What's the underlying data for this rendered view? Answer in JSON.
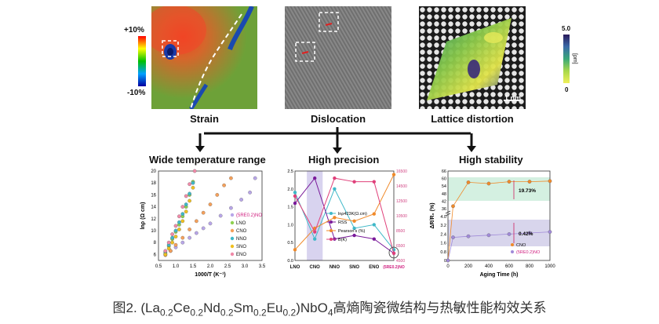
{
  "top": {
    "strain": {
      "label": "Strain",
      "scale_top": "+10%",
      "scale_bottom": "-10%"
    },
    "dislocation": {
      "label": "Dislocation"
    },
    "lattice": {
      "label": "Lattice distortion",
      "scale_top": "5.0",
      "scale_bottom": "0",
      "scale_unit": "[pm]",
      "scalebar": "1 nm"
    }
  },
  "sections": {
    "wide": "Wide temperature range",
    "precision": "High precision",
    "stability": "High stability"
  },
  "chart_data": [
    {
      "type": "scatter",
      "xlabel": "1000/T (K⁻¹)",
      "ylabel": "lnρ (Ω cm)",
      "xlim": [
        0.5,
        3.5
      ],
      "ylim": [
        5,
        20
      ],
      "xticks": [
        "0.5",
        "1.0",
        "1.5",
        "2.0",
        "2.5",
        "3.0",
        "3.5"
      ],
      "yticks": [
        "6",
        "8",
        "10",
        "12",
        "14",
        "16",
        "18",
        "20"
      ],
      "series": [
        {
          "name": "(5RE0.2)NO",
          "color": "#b8a6e8",
          "points": [
            [
              0.7,
              6.0
            ],
            [
              0.85,
              6.6
            ],
            [
              1.0,
              7.2
            ],
            [
              1.2,
              8.0
            ],
            [
              1.4,
              8.8
            ],
            [
              1.6,
              9.6
            ],
            [
              1.8,
              10.4
            ],
            [
              2.0,
              11.2
            ],
            [
              2.3,
              12.5
            ],
            [
              2.6,
              13.8
            ],
            [
              2.9,
              15.2
            ],
            [
              3.15,
              16.4
            ],
            [
              3.3,
              18.8
            ]
          ]
        },
        {
          "name": "LNO",
          "color": "#8fd14f",
          "points": [
            [
              0.7,
              6.2
            ],
            [
              0.8,
              7.4
            ],
            [
              0.9,
              8.6
            ],
            [
              1.0,
              9.8
            ],
            [
              1.1,
              11.0
            ],
            [
              1.2,
              12.4
            ],
            [
              1.3,
              14.0
            ],
            [
              1.4,
              16.0
            ],
            [
              1.5,
              18.2
            ]
          ]
        },
        {
          "name": "CNO",
          "color": "#f5a05a",
          "points": [
            [
              0.7,
              5.9
            ],
            [
              0.85,
              6.6
            ],
            [
              1.0,
              7.6
            ],
            [
              1.2,
              8.8
            ],
            [
              1.4,
              10.2
            ],
            [
              1.6,
              11.6
            ],
            [
              1.8,
              13.0
            ],
            [
              2.0,
              14.4
            ],
            [
              2.2,
              16.0
            ],
            [
              2.4,
              17.6
            ],
            [
              2.6,
              18.8
            ]
          ]
        },
        {
          "name": "NNO",
          "color": "#3fb8c8",
          "points": [
            [
              0.7,
              6.4
            ],
            [
              0.8,
              7.6
            ],
            [
              0.9,
              8.8
            ],
            [
              1.0,
              10.0
            ],
            [
              1.1,
              11.4
            ],
            [
              1.2,
              12.8
            ],
            [
              1.3,
              14.4
            ],
            [
              1.4,
              16.2
            ],
            [
              1.5,
              18.0
            ]
          ]
        },
        {
          "name": "SNO",
          "color": "#f0c020",
          "points": [
            [
              0.7,
              6.0
            ],
            [
              0.8,
              7.0
            ],
            [
              0.9,
              8.0
            ],
            [
              1.0,
              9.0
            ],
            [
              1.1,
              10.2
            ],
            [
              1.2,
              11.6
            ],
            [
              1.3,
              13.2
            ],
            [
              1.4,
              15.0
            ],
            [
              1.5,
              17.2
            ]
          ]
        },
        {
          "name": "ENO",
          "color": "#f08aa8",
          "points": [
            [
              0.7,
              6.6
            ],
            [
              0.8,
              8.0
            ],
            [
              0.9,
              9.4
            ],
            [
              1.0,
              10.8
            ],
            [
              1.1,
              12.4
            ],
            [
              1.2,
              14.0
            ],
            [
              1.3,
              15.8
            ],
            [
              1.4,
              17.8
            ],
            [
              1.55,
              20.0
            ]
          ]
        }
      ]
    },
    {
      "type": "line",
      "categories": [
        "LNO",
        "CNO",
        "NNO",
        "SNO",
        "ENO",
        "(5RE0.2)NO"
      ],
      "yticks_left": [
        "0.0",
        "0.5",
        "1.0",
        "1.5",
        "2.0",
        "2.5"
      ],
      "yticks_right": [
        "4500",
        "6500",
        "8500",
        "10500",
        "12500",
        "14500",
        "16500"
      ],
      "series": [
        {
          "name": "lnρ423K(Ω.cm)",
          "color": "#3fb8c8",
          "values": [
            1.9,
            0.6,
            2.0,
            0.9,
            1.0,
            0.3
          ]
        },
        {
          "name": "RSS",
          "color": "#7a1a9a",
          "values": [
            1.6,
            2.3,
            0.6,
            0.7,
            0.6,
            0.2
          ]
        },
        {
          "name": "Pearson's (%)",
          "color": "#f08a2a",
          "values": [
            0.3,
            0.9,
            1.2,
            1.1,
            1.3,
            2.4
          ]
        },
        {
          "name": "B(K)",
          "color": "#e0407a",
          "values": [
            1.8,
            0.8,
            2.3,
            2.2,
            2.2,
            0.2
          ]
        }
      ]
    },
    {
      "type": "scatter",
      "xlabel": "Aging Time (h)",
      "ylabel": "ΔR/R₀ (%)",
      "xticks": [
        "0",
        "200",
        "400",
        "600",
        "800",
        "1000"
      ],
      "yticks": [
        "0",
        "0.8",
        "1.6",
        "2.4",
        "3.2",
        "4.0",
        "36",
        "42",
        "48",
        "54",
        "60",
        "66"
      ],
      "annotations": [
        "19.73%",
        "0.42%"
      ],
      "series": [
        {
          "name": "CNO",
          "color": "#f08a2a",
          "points": [
            [
              0,
              0.0
            ],
            [
              50,
              38
            ],
            [
              200,
              57
            ],
            [
              400,
              56
            ],
            [
              600,
              57.5
            ],
            [
              800,
              57.5
            ],
            [
              1000,
              58
            ]
          ]
        },
        {
          "name": "(5RE0.2)NO",
          "color": "#a08ad8",
          "points": [
            [
              0,
              0.0
            ],
            [
              50,
              2.1
            ],
            [
              200,
              2.2
            ],
            [
              400,
              2.3
            ],
            [
              600,
              2.4
            ],
            [
              800,
              2.5
            ],
            [
              1000,
              2.6
            ]
          ]
        }
      ]
    }
  ],
  "caption": {
    "prefix": "图2. (La",
    "s1": "0.2",
    "ce": "Ce",
    "s2": "0.2",
    "nd": "Nd",
    "s3": "0.2",
    "sm": "Sm",
    "s4": "0.2",
    "eu": "Eu",
    "s5": "0.2",
    "nbo": ")NbO",
    "s6": "4",
    "suffix": "高熵陶瓷微结构与热敏性能构效关系"
  }
}
